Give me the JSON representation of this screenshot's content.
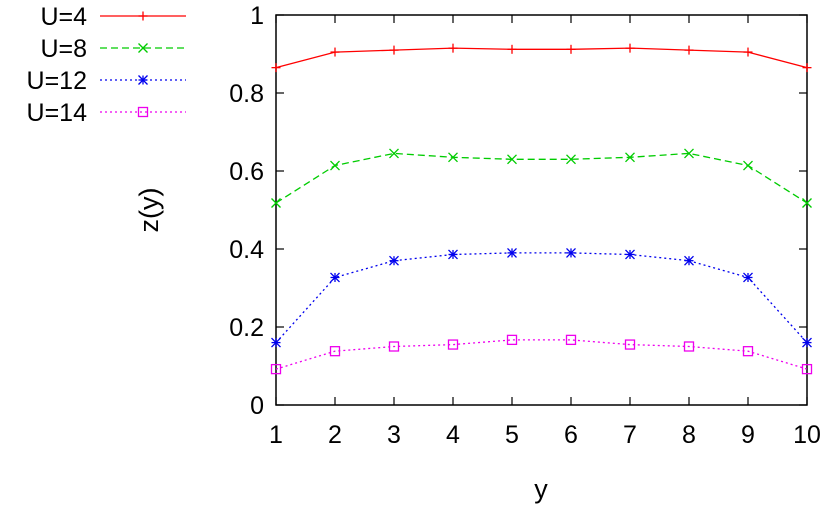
{
  "chart_data": {
    "type": "line",
    "xlabel": "y",
    "ylabel": "z(y)",
    "xlim": [
      1,
      10
    ],
    "ylim": [
      0,
      1
    ],
    "xticks": [
      1,
      2,
      3,
      4,
      5,
      6,
      7,
      8,
      9,
      10
    ],
    "yticks": [
      0,
      0.2,
      0.4,
      0.6,
      0.8,
      1
    ],
    "ytick_labels": [
      "0",
      "0.2",
      "0.4",
      "0.6",
      "0.8",
      "1"
    ],
    "x": [
      1,
      2,
      3,
      4,
      5,
      6,
      7,
      8,
      9,
      10
    ],
    "grid": false,
    "legend_position": "top-left",
    "series": [
      {
        "name": "U=4",
        "color": "#ff0000",
        "dash": "solid",
        "marker": "plus",
        "values": [
          0.865,
          0.905,
          0.91,
          0.915,
          0.912,
          0.912,
          0.915,
          0.91,
          0.905,
          0.865
        ]
      },
      {
        "name": "U=8",
        "color": "#00cc00",
        "dash": "dashed",
        "marker": "cross",
        "values": [
          0.518,
          0.614,
          0.645,
          0.635,
          0.63,
          0.63,
          0.635,
          0.645,
          0.614,
          0.518
        ]
      },
      {
        "name": "U=12",
        "color": "#0000ee",
        "dash": "dotted",
        "marker": "star",
        "values": [
          0.16,
          0.327,
          0.37,
          0.386,
          0.39,
          0.39,
          0.386,
          0.37,
          0.327,
          0.16
        ]
      },
      {
        "name": "U=14",
        "color": "#ee00ee",
        "dash": "dotted",
        "marker": "square",
        "values": [
          0.092,
          0.138,
          0.15,
          0.155,
          0.167,
          0.167,
          0.155,
          0.15,
          0.138,
          0.092
        ]
      }
    ]
  }
}
